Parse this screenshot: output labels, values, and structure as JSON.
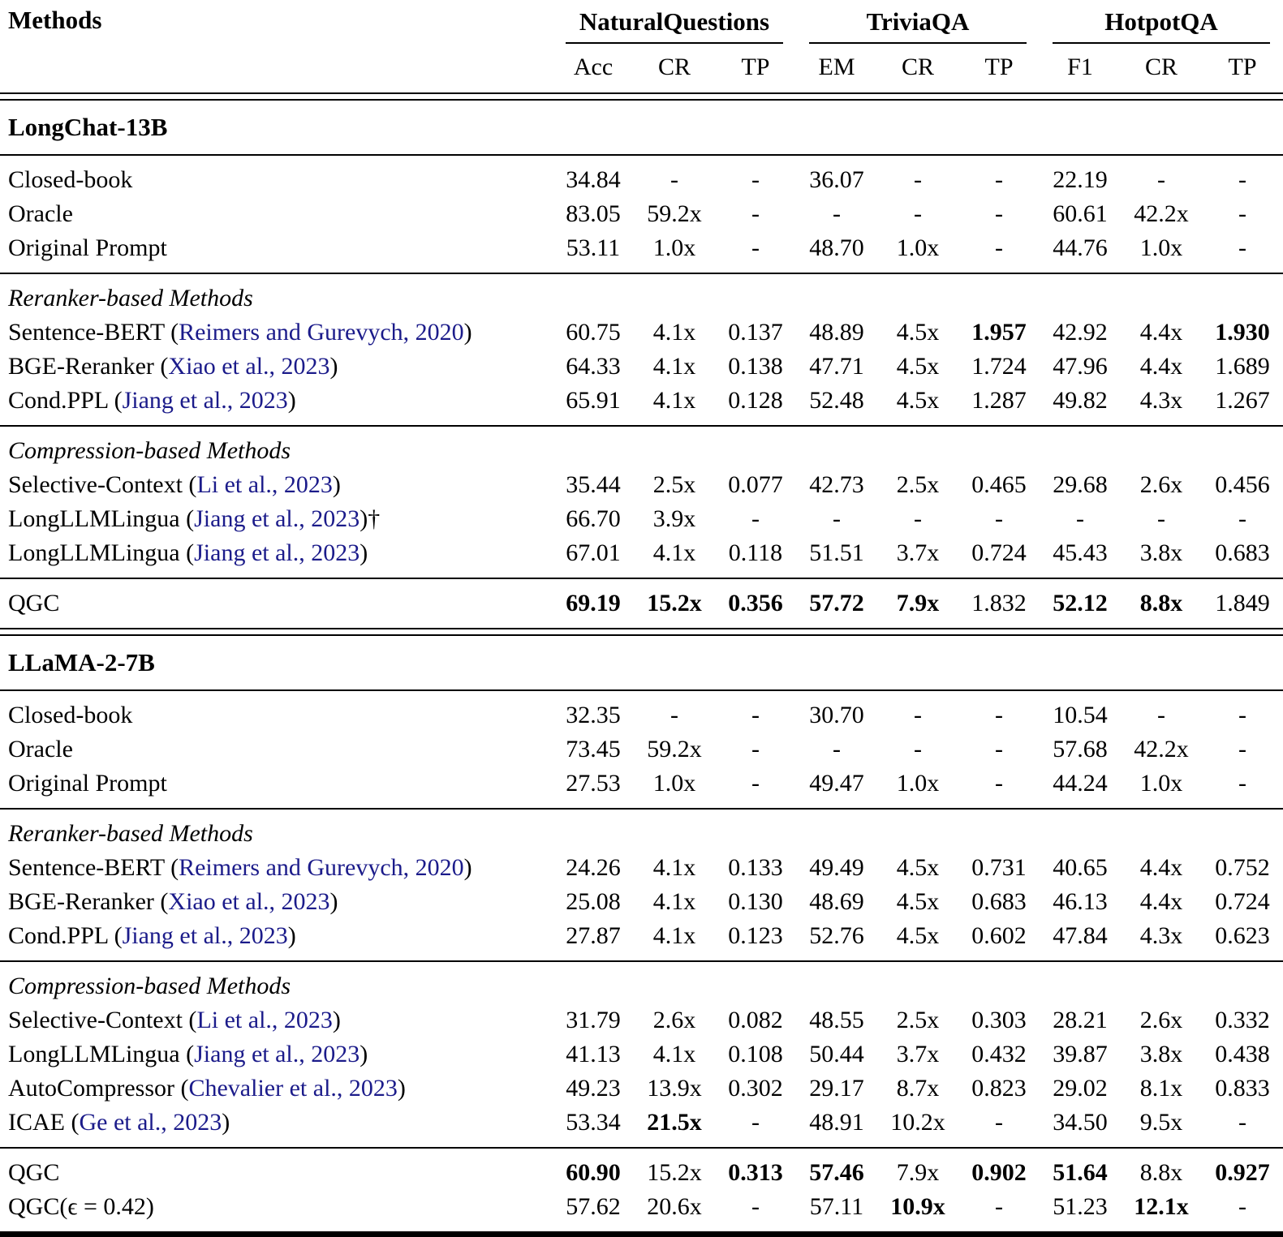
{
  "table": {
    "method_col_header": "Methods",
    "colors": {
      "citation_link": "#1b1b8a",
      "text": "#000000",
      "background": "#ffffff"
    },
    "groups": [
      {
        "label": "NaturalQuestions",
        "sub": [
          "Acc",
          "CR",
          "TP"
        ]
      },
      {
        "label": "TriviaQA",
        "sub": [
          "EM",
          "CR",
          "TP"
        ]
      },
      {
        "label": "HotpotQA",
        "sub": [
          "F1",
          "CR",
          "TP"
        ]
      }
    ],
    "sections": [
      {
        "model": "LongChat-13B",
        "groups": [
          {
            "label": null,
            "rows": [
              {
                "method": [
                  {
                    "text": "Closed-book"
                  }
                ],
                "cells": [
                  "34.84",
                  "-",
                  "-",
                  "36.07",
                  "-",
                  "-",
                  "22.19",
                  "-",
                  "-"
                ],
                "bold": []
              },
              {
                "method": [
                  {
                    "text": "Oracle"
                  }
                ],
                "cells": [
                  "83.05",
                  "59.2x",
                  "-",
                  "-",
                  "-",
                  "-",
                  "60.61",
                  "42.2x",
                  "-"
                ],
                "bold": []
              },
              {
                "method": [
                  {
                    "text": "Original Prompt"
                  }
                ],
                "cells": [
                  "53.11",
                  "1.0x",
                  "-",
                  "48.70",
                  "1.0x",
                  "-",
                  "44.76",
                  "1.0x",
                  "-"
                ],
                "bold": []
              }
            ]
          },
          {
            "label": "Reranker-based Methods",
            "rows": [
              {
                "method": [
                  {
                    "text": "Sentence-BERT ("
                  },
                  {
                    "text": "Reimers and Gurevych, 2020",
                    "citation": true
                  },
                  {
                    "text": ")"
                  }
                ],
                "cells": [
                  "60.75",
                  "4.1x",
                  "0.137",
                  "48.89",
                  "4.5x",
                  "1.957",
                  "42.92",
                  "4.4x",
                  "1.930"
                ],
                "bold": [
                  5,
                  8
                ]
              },
              {
                "method": [
                  {
                    "text": "BGE-Reranker ("
                  },
                  {
                    "text": "Xiao et al., 2023",
                    "citation": true
                  },
                  {
                    "text": ")"
                  }
                ],
                "cells": [
                  "64.33",
                  "4.1x",
                  "0.138",
                  "47.71",
                  "4.5x",
                  "1.724",
                  "47.96",
                  "4.4x",
                  "1.689"
                ],
                "bold": []
              },
              {
                "method": [
                  {
                    "text": "Cond.PPL ("
                  },
                  {
                    "text": "Jiang et al., 2023",
                    "citation": true
                  },
                  {
                    "text": ")"
                  }
                ],
                "cells": [
                  "65.91",
                  "4.1x",
                  "0.128",
                  "52.48",
                  "4.5x",
                  "1.287",
                  "49.82",
                  "4.3x",
                  "1.267"
                ],
                "bold": []
              }
            ]
          },
          {
            "label": "Compression-based Methods",
            "rows": [
              {
                "method": [
                  {
                    "text": "Selective-Context ("
                  },
                  {
                    "text": "Li et al., 2023",
                    "citation": true
                  },
                  {
                    "text": ")"
                  }
                ],
                "cells": [
                  "35.44",
                  "2.5x",
                  "0.077",
                  "42.73",
                  "2.5x",
                  "0.465",
                  "29.68",
                  "2.6x",
                  "0.456"
                ],
                "bold": []
              },
              {
                "method": [
                  {
                    "text": "LongLLMLingua ("
                  },
                  {
                    "text": "Jiang et al., 2023",
                    "citation": true
                  },
                  {
                    "text": ")†"
                  }
                ],
                "cells": [
                  "66.70",
                  "3.9x",
                  "-",
                  "-",
                  "-",
                  "-",
                  "-",
                  "-",
                  "-"
                ],
                "bold": []
              },
              {
                "method": [
                  {
                    "text": "LongLLMLingua ("
                  },
                  {
                    "text": "Jiang et al., 2023",
                    "citation": true
                  },
                  {
                    "text": ")"
                  }
                ],
                "cells": [
                  "67.01",
                  "4.1x",
                  "0.118",
                  "51.51",
                  "3.7x",
                  "0.724",
                  "45.43",
                  "3.8x",
                  "0.683"
                ],
                "bold": []
              }
            ]
          },
          {
            "label": null,
            "rows": [
              {
                "method": [
                  {
                    "text": "QGC"
                  }
                ],
                "cells": [
                  "69.19",
                  "15.2x",
                  "0.356",
                  "57.72",
                  "7.9x",
                  "1.832",
                  "52.12",
                  "8.8x",
                  "1.849"
                ],
                "bold": [
                  0,
                  1,
                  2,
                  3,
                  4,
                  6,
                  7
                ]
              }
            ]
          }
        ]
      },
      {
        "model": "LLaMA-2-7B",
        "groups": [
          {
            "label": null,
            "rows": [
              {
                "method": [
                  {
                    "text": "Closed-book"
                  }
                ],
                "cells": [
                  "32.35",
                  "-",
                  "-",
                  "30.70",
                  "-",
                  "-",
                  "10.54",
                  "-",
                  "-"
                ],
                "bold": []
              },
              {
                "method": [
                  {
                    "text": "Oracle"
                  }
                ],
                "cells": [
                  "73.45",
                  "59.2x",
                  "-",
                  "-",
                  "-",
                  "-",
                  "57.68",
                  "42.2x",
                  "-"
                ],
                "bold": []
              },
              {
                "method": [
                  {
                    "text": "Original Prompt"
                  }
                ],
                "cells": [
                  "27.53",
                  "1.0x",
                  "-",
                  "49.47",
                  "1.0x",
                  "-",
                  "44.24",
                  "1.0x",
                  "-"
                ],
                "bold": []
              }
            ]
          },
          {
            "label": "Reranker-based Methods",
            "rows": [
              {
                "method": [
                  {
                    "text": "Sentence-BERT ("
                  },
                  {
                    "text": "Reimers and Gurevych, 2020",
                    "citation": true
                  },
                  {
                    "text": ")"
                  }
                ],
                "cells": [
                  "24.26",
                  "4.1x",
                  "0.133",
                  "49.49",
                  "4.5x",
                  "0.731",
                  "40.65",
                  "4.4x",
                  "0.752"
                ],
                "bold": []
              },
              {
                "method": [
                  {
                    "text": "BGE-Reranker ("
                  },
                  {
                    "text": "Xiao et al., 2023",
                    "citation": true
                  },
                  {
                    "text": ")"
                  }
                ],
                "cells": [
                  "25.08",
                  "4.1x",
                  "0.130",
                  "48.69",
                  "4.5x",
                  "0.683",
                  "46.13",
                  "4.4x",
                  "0.724"
                ],
                "bold": []
              },
              {
                "method": [
                  {
                    "text": "Cond.PPL ("
                  },
                  {
                    "text": "Jiang et al., 2023",
                    "citation": true
                  },
                  {
                    "text": ")"
                  }
                ],
                "cells": [
                  "27.87",
                  "4.1x",
                  "0.123",
                  "52.76",
                  "4.5x",
                  "0.602",
                  "47.84",
                  "4.3x",
                  "0.623"
                ],
                "bold": []
              }
            ]
          },
          {
            "label": "Compression-based Methods",
            "rows": [
              {
                "method": [
                  {
                    "text": "Selective-Context ("
                  },
                  {
                    "text": "Li et al., 2023",
                    "citation": true
                  },
                  {
                    "text": ")"
                  }
                ],
                "cells": [
                  "31.79",
                  "2.6x",
                  "0.082",
                  "48.55",
                  "2.5x",
                  "0.303",
                  "28.21",
                  "2.6x",
                  "0.332"
                ],
                "bold": []
              },
              {
                "method": [
                  {
                    "text": "LongLLMLingua ("
                  },
                  {
                    "text": "Jiang et al., 2023",
                    "citation": true
                  },
                  {
                    "text": ")"
                  }
                ],
                "cells": [
                  "41.13",
                  "4.1x",
                  "0.108",
                  "50.44",
                  "3.7x",
                  "0.432",
                  "39.87",
                  "3.8x",
                  "0.438"
                ],
                "bold": []
              },
              {
                "method": [
                  {
                    "text": "AutoCompressor ("
                  },
                  {
                    "text": "Chevalier et al., 2023",
                    "citation": true
                  },
                  {
                    "text": ")"
                  }
                ],
                "cells": [
                  "49.23",
                  "13.9x",
                  "0.302",
                  "29.17",
                  "8.7x",
                  "0.823",
                  "29.02",
                  "8.1x",
                  "0.833"
                ],
                "bold": []
              },
              {
                "method": [
                  {
                    "text": "ICAE ("
                  },
                  {
                    "text": "Ge et al., 2023",
                    "citation": true
                  },
                  {
                    "text": ")"
                  }
                ],
                "cells": [
                  "53.34",
                  "21.5x",
                  "-",
                  "48.91",
                  "10.2x",
                  "-",
                  "34.50",
                  "9.5x",
                  "-"
                ],
                "bold": [
                  1
                ]
              }
            ]
          },
          {
            "label": null,
            "rows": [
              {
                "method": [
                  {
                    "text": "QGC"
                  }
                ],
                "cells": [
                  "60.90",
                  "15.2x",
                  "0.313",
                  "57.46",
                  "7.9x",
                  "0.902",
                  "51.64",
                  "8.8x",
                  "0.927"
                ],
                "bold": [
                  0,
                  2,
                  3,
                  5,
                  6,
                  8
                ]
              },
              {
                "method": [
                  {
                    "text": "QGC(ϵ = 0.42)"
                  }
                ],
                "cells": [
                  "57.62",
                  "20.6x",
                  "-",
                  "57.11",
                  "10.9x",
                  "-",
                  "51.23",
                  "12.1x",
                  "-"
                ],
                "bold": [
                  4,
                  7
                ]
              }
            ]
          }
        ]
      }
    ]
  }
}
